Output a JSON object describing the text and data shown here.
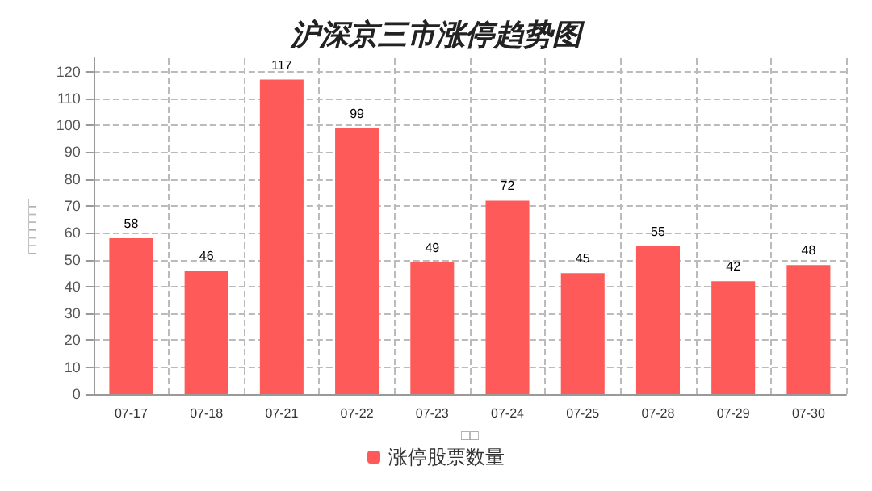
{
  "chart_data": {
    "type": "bar",
    "title": "沪深京三市涨停趋势图",
    "xlabel": "□□",
    "ylabel": "□□□□□□□",
    "categories": [
      "07-17",
      "07-18",
      "07-21",
      "07-22",
      "07-23",
      "07-24",
      "07-25",
      "07-28",
      "07-29",
      "07-30"
    ],
    "series": [
      {
        "name": "涨停股票数量",
        "color": "#ff5a5a",
        "values": [
          58,
          46,
          117,
          99,
          49,
          72,
          45,
          55,
          42,
          48
        ]
      }
    ],
    "ylim": [
      0,
      125
    ],
    "yticks": [
      0,
      10,
      20,
      30,
      40,
      50,
      60,
      70,
      80,
      90,
      100,
      110,
      120
    ],
    "grid": true,
    "legend": "bottom",
    "data_labels": true
  }
}
